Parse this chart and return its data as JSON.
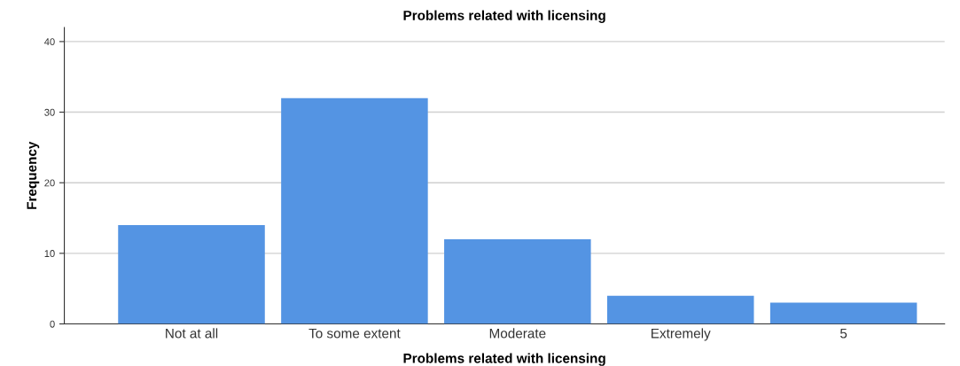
{
  "chart_data": {
    "type": "bar",
    "title": "Problems related with licensing",
    "xlabel": "Problems related with licensing",
    "ylabel": "Frequency",
    "categories": [
      "Not at all",
      "To some extent",
      "Moderate",
      "Extremely",
      "5"
    ],
    "values": [
      14,
      32,
      12,
      4,
      3
    ],
    "color": "#5494e3",
    "ylim": [
      0,
      42
    ],
    "yticks": [
      0,
      10,
      20,
      30,
      40
    ],
    "grid": "y",
    "legend": false
  }
}
